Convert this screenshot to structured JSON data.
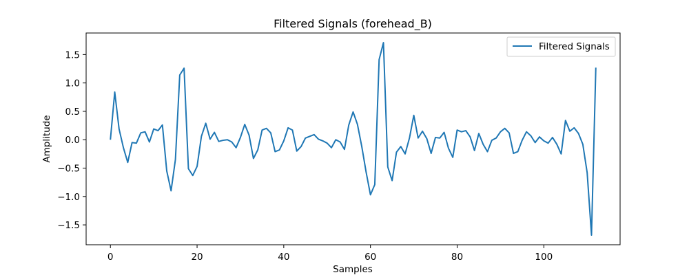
{
  "chart_data": {
    "type": "line",
    "title": "Filtered Signals (forehead_B)",
    "xlabel": "Samples",
    "ylabel": "Amplitude",
    "xlim": [
      -5.6,
      117.6
    ],
    "ylim": [
      -1.85,
      1.88
    ],
    "xticks": [
      0,
      20,
      40,
      60,
      80,
      100
    ],
    "yticks": [
      -1.5,
      -1.0,
      -0.5,
      0.0,
      0.5,
      1.0,
      1.5
    ],
    "ytick_labels": [
      "−1.5",
      "−1.0",
      "−0.5",
      "0.0",
      "0.5",
      "1.0",
      "1.5"
    ],
    "grid": false,
    "legend_position": "top-right",
    "color": "#1f77b4",
    "series": [
      {
        "name": "Filtered Signals",
        "y": [
          0.0,
          0.84,
          0.19,
          -0.14,
          -0.4,
          -0.05,
          -0.06,
          0.12,
          0.14,
          -0.04,
          0.19,
          0.16,
          0.26,
          -0.55,
          -0.9,
          -0.35,
          1.14,
          1.26,
          -0.51,
          -0.63,
          -0.47,
          0.06,
          0.29,
          0.01,
          0.13,
          -0.03,
          -0.01,
          0.0,
          -0.04,
          -0.14,
          0.04,
          0.27,
          0.08,
          -0.33,
          -0.18,
          0.17,
          0.2,
          0.12,
          -0.21,
          -0.18,
          -0.02,
          0.21,
          0.17,
          -0.2,
          -0.12,
          0.03,
          0.06,
          0.09,
          0.01,
          -0.02,
          -0.06,
          -0.14,
          0.0,
          -0.04,
          -0.17,
          0.26,
          0.49,
          0.27,
          -0.12,
          -0.57,
          -0.97,
          -0.79,
          1.41,
          1.71,
          -0.48,
          -0.72,
          -0.22,
          -0.12,
          -0.25,
          0.03,
          0.43,
          0.03,
          0.15,
          0.02,
          -0.24,
          0.04,
          0.03,
          0.13,
          -0.15,
          -0.31,
          0.17,
          0.14,
          0.16,
          0.05,
          -0.19,
          0.11,
          -0.08,
          -0.21,
          -0.01,
          0.03,
          0.14,
          0.2,
          0.12,
          -0.24,
          -0.21,
          -0.01,
          0.14,
          0.07,
          -0.05,
          0.05,
          -0.02,
          -0.06,
          0.04,
          -0.08,
          -0.25,
          0.34,
          0.15,
          0.21,
          0.11,
          -0.08,
          -0.58,
          -1.68,
          1.27
        ]
      }
    ]
  }
}
